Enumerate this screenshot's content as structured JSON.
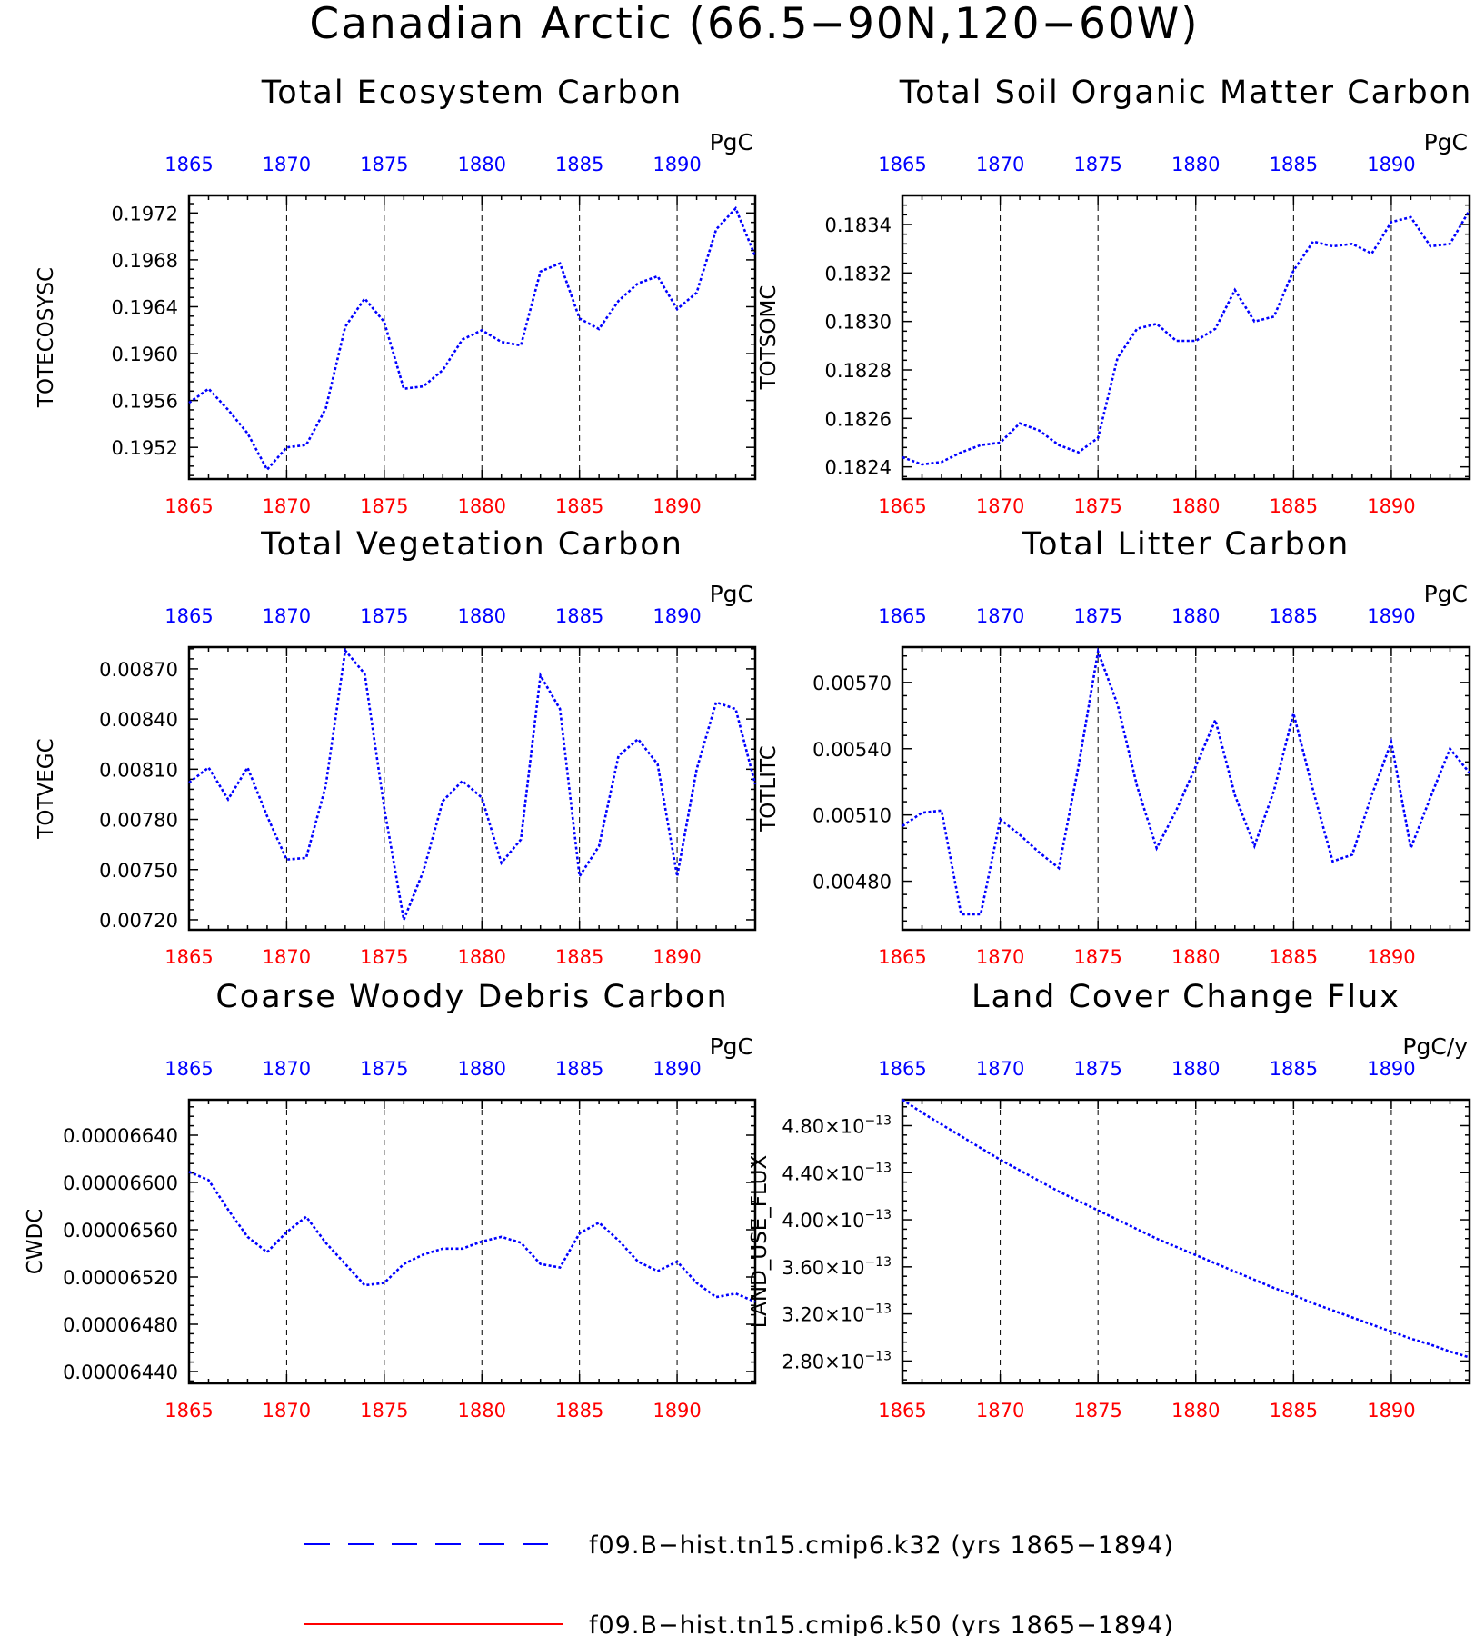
{
  "title": "Canadian Arctic (66.5−90N,120−60W)",
  "colors": {
    "series": "#0000ff",
    "top_axis": "#0000ff",
    "bottom_axis": "#ff0000",
    "legend_line_2": "#ff0000"
  },
  "legend": [
    {
      "label": "f09.B−hist.tn15.cmip6.k32 (yrs 1865−1894)",
      "style": "dashed",
      "color": "#0000ff"
    },
    {
      "label": "f09.B−hist.tn15.cmip6.k50 (yrs 1865−1894)",
      "style": "solid",
      "color": "#ff0000"
    }
  ],
  "chart_data": [
    {
      "type": "line",
      "title": "Total Ecosystem Carbon",
      "units": "PgC",
      "ylabel": "TOTECOSYSC",
      "xlim": [
        1865,
        1894
      ],
      "ylim": [
        0.19493,
        0.19735
      ],
      "xticks": [
        "1865",
        "1870",
        "1875",
        "1880",
        "1885",
        "1890"
      ],
      "yticks": [
        "0.1952",
        "0.1956",
        "0.1960",
        "0.1964",
        "0.1968",
        "0.1972"
      ],
      "series": [
        {
          "x": [
            1865,
            1866,
            1867,
            1868,
            1869,
            1870,
            1871,
            1872,
            1873,
            1874,
            1875,
            1876,
            1877,
            1878,
            1879,
            1880,
            1881,
            1882,
            1883,
            1884,
            1885,
            1886,
            1887,
            1888,
            1889,
            1890,
            1891,
            1892,
            1893,
            1894
          ],
          "values": [
            0.19558,
            0.1957,
            0.19552,
            0.19532,
            0.19501,
            0.1952,
            0.19522,
            0.19553,
            0.19623,
            0.19647,
            0.19627,
            0.1957,
            0.19572,
            0.19586,
            0.19612,
            0.1962,
            0.1961,
            0.19607,
            0.1967,
            0.19677,
            0.1963,
            0.19621,
            0.19645,
            0.1966,
            0.19666,
            0.19638,
            0.19652,
            0.19706,
            0.19724,
            0.19683
          ]
        }
      ]
    },
    {
      "type": "line",
      "title": "Total Soil Organic Matter Carbon",
      "units": "PgC",
      "ylabel": "TOTSOMC",
      "xlim": [
        1865,
        1894
      ],
      "ylim": [
        0.18235,
        0.18352
      ],
      "xticks": [
        "1865",
        "1870",
        "1875",
        "1880",
        "1885",
        "1890"
      ],
      "yticks": [
        "0.1824",
        "0.1826",
        "0.1828",
        "0.1830",
        "0.1832",
        "0.1834"
      ],
      "series": [
        {
          "x": [
            1865,
            1866,
            1867,
            1868,
            1869,
            1870,
            1871,
            1872,
            1873,
            1874,
            1875,
            1876,
            1877,
            1878,
            1879,
            1880,
            1881,
            1882,
            1883,
            1884,
            1885,
            1886,
            1887,
            1888,
            1889,
            1890,
            1891,
            1892,
            1893,
            1894
          ],
          "values": [
            0.18244,
            0.18241,
            0.18242,
            0.18246,
            0.18249,
            0.1825,
            0.18258,
            0.18255,
            0.18249,
            0.18246,
            0.18252,
            0.18285,
            0.18297,
            0.18299,
            0.18292,
            0.18292,
            0.18297,
            0.18313,
            0.183,
            0.18302,
            0.18321,
            0.18333,
            0.18331,
            0.18332,
            0.18328,
            0.18341,
            0.18343,
            0.18331,
            0.18332,
            0.18346
          ]
        }
      ]
    },
    {
      "type": "line",
      "title": "Total Vegetation Carbon",
      "units": "PgC",
      "ylabel": "TOTVEGC",
      "xlim": [
        1865,
        1894
      ],
      "ylim": [
        0.00714,
        0.00883
      ],
      "xticks": [
        "1865",
        "1870",
        "1875",
        "1880",
        "1885",
        "1890"
      ],
      "yticks": [
        "0.00720",
        "0.00750",
        "0.00780",
        "0.00810",
        "0.00840",
        "0.00870"
      ],
      "series": [
        {
          "x": [
            1865,
            1866,
            1867,
            1868,
            1869,
            1870,
            1871,
            1872,
            1873,
            1874,
            1875,
            1876,
            1877,
            1878,
            1879,
            1880,
            1881,
            1882,
            1883,
            1884,
            1885,
            1886,
            1887,
            1888,
            1889,
            1890,
            1891,
            1892,
            1893,
            1894
          ],
          "values": [
            0.00802,
            0.00811,
            0.00792,
            0.00811,
            0.00782,
            0.00756,
            0.00757,
            0.008,
            0.00881,
            0.00867,
            0.00787,
            0.0072,
            0.00749,
            0.00791,
            0.00803,
            0.00793,
            0.00754,
            0.00768,
            0.00866,
            0.00846,
            0.00746,
            0.00764,
            0.00818,
            0.00828,
            0.00813,
            0.00746,
            0.0081,
            0.0085,
            0.00846,
            0.00801
          ]
        }
      ]
    },
    {
      "type": "line",
      "title": "Total Litter Carbon",
      "units": "PgC",
      "ylabel": "TOTLITC",
      "xlim": [
        1865,
        1894
      ],
      "ylim": [
        0.00458,
        0.00586
      ],
      "xticks": [
        "1865",
        "1870",
        "1875",
        "1880",
        "1885",
        "1890"
      ],
      "yticks": [
        "0.00480",
        "0.00510",
        "0.00540",
        "0.00570"
      ],
      "series": [
        {
          "x": [
            1865,
            1866,
            1867,
            1868,
            1869,
            1870,
            1871,
            1872,
            1873,
            1874,
            1875,
            1876,
            1877,
            1878,
            1879,
            1880,
            1881,
            1882,
            1883,
            1884,
            1885,
            1886,
            1887,
            1888,
            1889,
            1890,
            1891,
            1892,
            1893,
            1894
          ],
          "values": [
            0.00505,
            0.00511,
            0.00512,
            0.00465,
            0.00465,
            0.00508,
            0.00501,
            0.00493,
            0.00486,
            0.00532,
            0.00584,
            0.0056,
            0.00523,
            0.00495,
            0.00512,
            0.00532,
            0.00553,
            0.00519,
            0.00496,
            0.00521,
            0.00556,
            0.00521,
            0.00489,
            0.00492,
            0.00519,
            0.00543,
            0.00495,
            0.00518,
            0.0054,
            0.00529
          ]
        }
      ]
    },
    {
      "type": "line",
      "title": "Coarse Woody Debris Carbon",
      "units": "PgC",
      "ylabel": "CWDC",
      "xlim": [
        1865,
        1894
      ],
      "ylim": [
        6.43e-05,
        6.67e-05
      ],
      "xticks": [
        "1865",
        "1870",
        "1875",
        "1880",
        "1885",
        "1890"
      ],
      "yticks": [
        "0.00006440",
        "0.00006480",
        "0.00006520",
        "0.00006560",
        "0.00006600",
        "0.00006640"
      ],
      "series": [
        {
          "x": [
            1865,
            1866,
            1867,
            1868,
            1869,
            1870,
            1871,
            1872,
            1873,
            1874,
            1875,
            1876,
            1877,
            1878,
            1879,
            1880,
            1881,
            1882,
            1883,
            1884,
            1885,
            1886,
            1887,
            1888,
            1889,
            1890,
            1891,
            1892,
            1893,
            1894
          ],
          "values": [
            6.609e-05,
            6.602e-05,
            6.577e-05,
            6.554e-05,
            6.541e-05,
            6.558e-05,
            6.571e-05,
            6.549e-05,
            6.531e-05,
            6.513e-05,
            6.515e-05,
            6.531e-05,
            6.539e-05,
            6.544e-05,
            6.544e-05,
            6.55e-05,
            6.554e-05,
            6.549e-05,
            6.531e-05,
            6.528e-05,
            6.557e-05,
            6.566e-05,
            6.551e-05,
            6.533e-05,
            6.525e-05,
            6.533e-05,
            6.515e-05,
            6.503e-05,
            6.506e-05,
            6.499e-05
          ]
        }
      ]
    },
    {
      "type": "line",
      "title": "Land Cover Change Flux",
      "units": "PgC/y",
      "ylabel": "LAND_USE_FLUX",
      "xlim": [
        1865,
        1894
      ],
      "ylim": [
        2.61e-13,
        5.02e-13
      ],
      "xticks": [
        "1865",
        "1870",
        "1875",
        "1880",
        "1885",
        "1890"
      ],
      "yticks": [
        {
          "value": 2.8e-13,
          "mantissa": "2.80",
          "exponent": "−13"
        },
        {
          "value": 3.2e-13,
          "mantissa": "3.20",
          "exponent": "−13"
        },
        {
          "value": 3.6e-13,
          "mantissa": "3.60",
          "exponent": "−13"
        },
        {
          "value": 4e-13,
          "mantissa": "4.00",
          "exponent": "−13"
        },
        {
          "value": 4.4e-13,
          "mantissa": "4.40",
          "exponent": "−13"
        },
        {
          "value": 4.8e-13,
          "mantissa": "4.80",
          "exponent": "−13"
        }
      ],
      "series": [
        {
          "x": [
            1865,
            1866,
            1867,
            1868,
            1869,
            1870,
            1871,
            1872,
            1873,
            1874,
            1875,
            1876,
            1877,
            1878,
            1879,
            1880,
            1881,
            1882,
            1883,
            1884,
            1885,
            1886,
            1887,
            1888,
            1889,
            1890,
            1891,
            1892,
            1893,
            1894
          ],
          "values": [
            5.02e-13,
            4.91e-13,
            4.81e-13,
            4.71e-13,
            4.61e-13,
            4.51e-13,
            4.42e-13,
            4.33e-13,
            4.24e-13,
            4.16e-13,
            4.08e-13,
            4e-13,
            3.92e-13,
            3.84e-13,
            3.77e-13,
            3.7e-13,
            3.63e-13,
            3.56e-13,
            3.49e-13,
            3.42e-13,
            3.36e-13,
            3.29e-13,
            3.23e-13,
            3.17e-13,
            3.11e-13,
            3.05e-13,
            2.99e-13,
            2.94e-13,
            2.88e-13,
            2.83e-13
          ]
        }
      ]
    }
  ]
}
